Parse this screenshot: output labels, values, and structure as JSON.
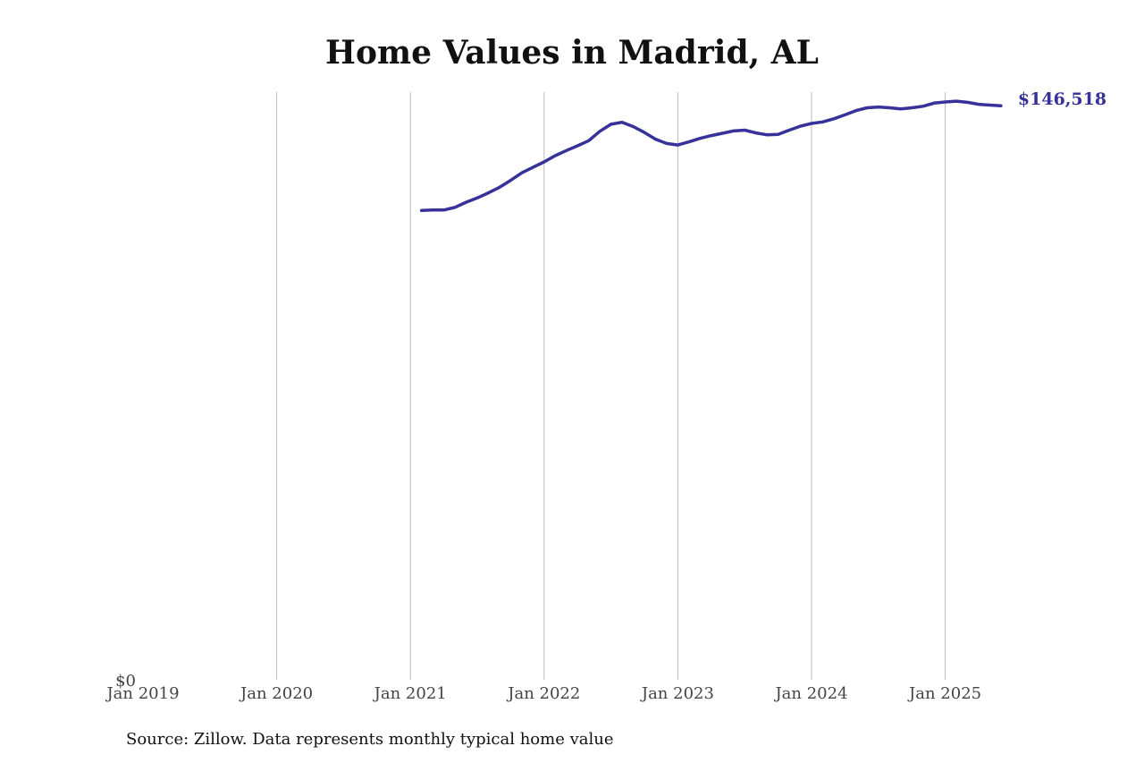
{
  "chart_data": {
    "type": "line",
    "title": "Home Values in Madrid, AL",
    "xlabel": "",
    "ylabel": "",
    "x_tick_labels": [
      "Jan 2019",
      "Jan 2020",
      "Jan 2021",
      "Jan 2022",
      "Jan 2023",
      "Jan 2024",
      "Jan 2025"
    ],
    "y_tick_labels": [
      "$0"
    ],
    "ylim": [
      0,
      150000
    ],
    "xlim": [
      "2019-01",
      "2025-12"
    ],
    "grid": "vertical",
    "line_color": "#37319a",
    "grid_color": "#bbbbbb",
    "end_value_label": "$146,518",
    "series": [
      {
        "x": [
          "2021-02",
          "2021-03",
          "2021-04",
          "2021-05",
          "2021-06",
          "2021-07",
          "2021-08",
          "2021-09",
          "2021-10",
          "2021-11",
          "2021-12",
          "2022-01",
          "2022-02",
          "2022-03",
          "2022-04",
          "2022-05",
          "2022-06",
          "2022-07",
          "2022-08",
          "2022-09",
          "2022-10",
          "2022-11",
          "2022-12",
          "2023-01",
          "2023-02",
          "2023-03",
          "2023-04",
          "2023-05",
          "2023-06",
          "2023-07",
          "2023-08",
          "2023-09",
          "2023-10",
          "2023-11",
          "2023-12",
          "2024-01",
          "2024-02",
          "2024-03",
          "2024-04",
          "2024-05",
          "2024-06",
          "2024-07",
          "2024-08",
          "2024-09",
          "2024-10",
          "2024-11",
          "2024-12",
          "2025-01",
          "2025-02",
          "2025-03",
          "2025-04",
          "2025-05",
          "2025-06"
        ],
        "y": [
          119800,
          119900,
          119900,
          120600,
          121900,
          123000,
          124300,
          125700,
          127500,
          129400,
          130800,
          132200,
          133800,
          135100,
          136300,
          137600,
          140000,
          141800,
          142300,
          141200,
          139700,
          138000,
          136900,
          136500,
          137300,
          138200,
          138900,
          139500,
          140100,
          140300,
          139600,
          139100,
          139200,
          140300,
          141300,
          142000,
          142400,
          143200,
          144200,
          145300,
          146000,
          146200,
          146000,
          145700,
          146000,
          146400,
          147200,
          147500,
          147700,
          147400,
          146900,
          146700,
          146518
        ]
      }
    ]
  },
  "source_note": "Source: Zillow. Data represents monthly typical home value"
}
